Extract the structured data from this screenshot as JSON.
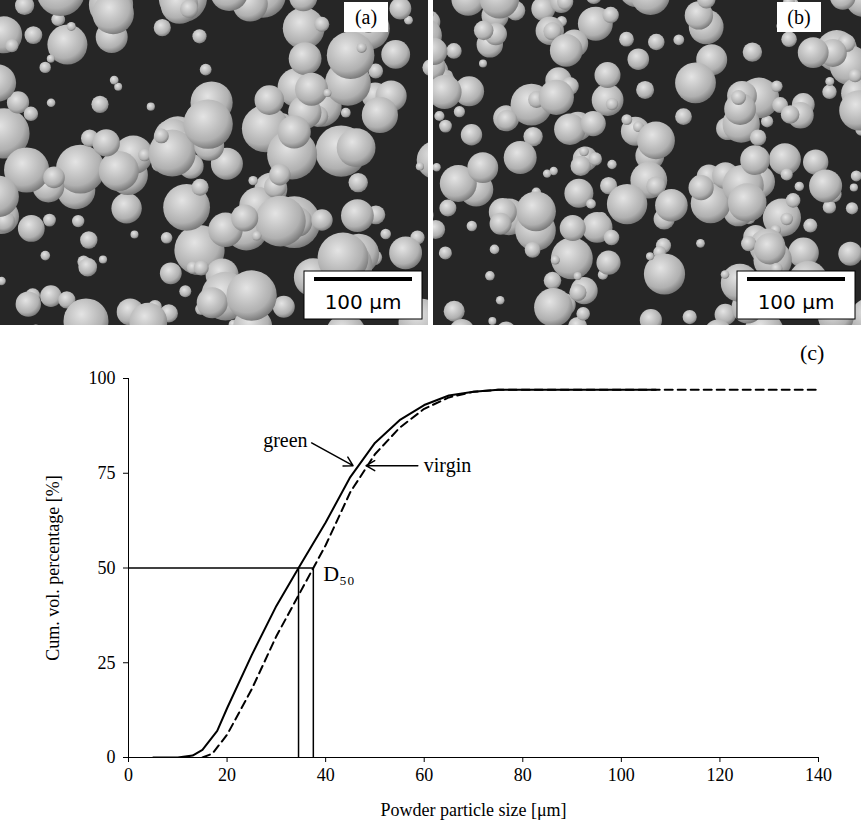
{
  "images": [
    {
      "letter": "(a)",
      "scale_bar": "100 μm"
    },
    {
      "letter": "(b)",
      "scale_bar": "100 μm"
    }
  ],
  "chart_data": {
    "type": "line",
    "letter": "(c)",
    "x_label": "Powder particle size [μm]",
    "y_label": "Cum. vol. percentage [%]",
    "xlim": [
      0,
      140
    ],
    "ylim": [
      0,
      100
    ],
    "xticks": [
      0,
      20,
      40,
      60,
      80,
      100,
      120,
      140
    ],
    "yticks": [
      0,
      25,
      50,
      75,
      100
    ],
    "grid": false,
    "d50_label": "D₅₀",
    "d50_level": 50,
    "series": [
      {
        "name": "green",
        "color": "#000000",
        "line_style": "solid",
        "d50": 34.5,
        "x": [
          5,
          10,
          13,
          15,
          18,
          20,
          25,
          30,
          34.5,
          40,
          45,
          50,
          55,
          60,
          65,
          70,
          75,
          80,
          90,
          100,
          107
        ],
        "values": [
          0,
          0,
          0.5,
          2,
          7,
          13,
          27,
          40,
          50,
          62,
          74,
          83,
          89,
          93,
          95.5,
          96.5,
          97,
          97,
          97,
          97,
          97
        ]
      },
      {
        "name": "virgin",
        "color": "#000000",
        "line_style": "dashed",
        "d50": 37.5,
        "x": [
          15,
          17,
          20,
          25,
          30,
          37.5,
          40,
          45,
          50,
          55,
          60,
          65,
          70,
          75,
          80,
          90,
          100,
          120,
          140
        ],
        "values": [
          0,
          1,
          6,
          18,
          32,
          50,
          56,
          70,
          80,
          87,
          92,
          95,
          96.5,
          97,
          97,
          97,
          97,
          97,
          97
        ]
      }
    ]
  }
}
